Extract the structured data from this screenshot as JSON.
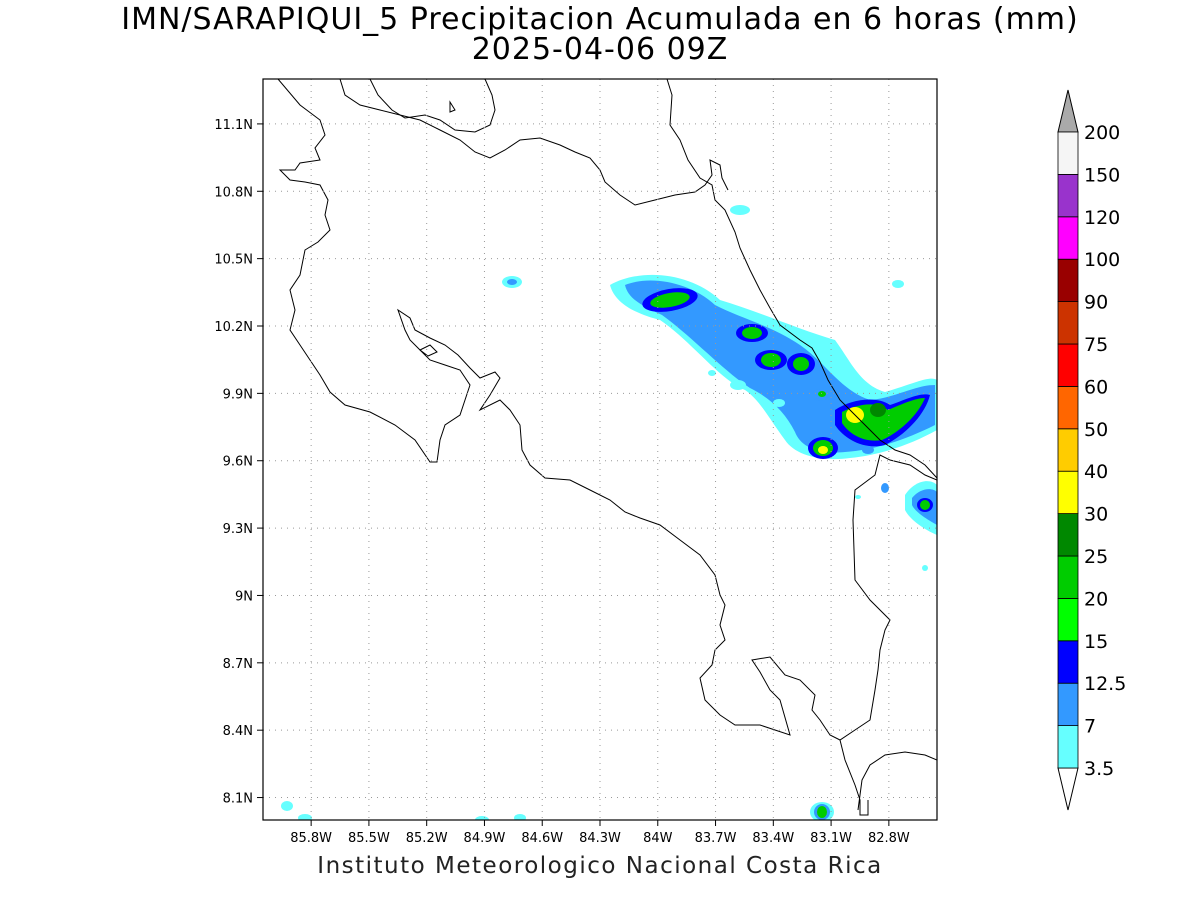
{
  "header": {
    "title_line1": "IMN/SARAPIQUI_5 Precipitacion Acumulada en 6 horas (mm)",
    "title_line2": "2025-04-06 09Z"
  },
  "footer": {
    "credit": "Instituto Meteorologico Nacional Costa Rica"
  },
  "map": {
    "lon_range": [
      -86.05,
      -82.55
    ],
    "lat_range": [
      8.0,
      11.3
    ],
    "grid": "dotted",
    "lat_ticks": [
      "11.1N",
      "10.8N",
      "10.5N",
      "10.2N",
      "9.9N",
      "9.6N",
      "9.3N",
      "9N",
      "8.7N",
      "8.4N",
      "8.1N"
    ],
    "lat_tick_values": [
      11.1,
      10.8,
      10.5,
      10.2,
      9.9,
      9.6,
      9.3,
      9.0,
      8.7,
      8.4,
      8.1
    ],
    "lon_ticks": [
      "85.8W",
      "85.5W",
      "85.2W",
      "84.9W",
      "84.6W",
      "84.3W",
      "84W",
      "83.7W",
      "83.4W",
      "83.1W",
      "82.8W"
    ],
    "lon_tick_values": [
      -85.8,
      -85.5,
      -85.2,
      -84.9,
      -84.6,
      -84.3,
      -84.0,
      -83.7,
      -83.4,
      -83.1,
      -82.8
    ]
  },
  "colorbar": {
    "levels": [
      "3.5",
      "7",
      "12.5",
      "15",
      "20",
      "25",
      "30",
      "40",
      "50",
      "60",
      "75",
      "90",
      "100",
      "120",
      "150",
      "200"
    ],
    "colors": [
      "#66ffff",
      "#3399ff",
      "#0000ff",
      "#00ff00",
      "#00cc00",
      "#008800",
      "#ffff00",
      "#ffcc00",
      "#ff6600",
      "#ff0000",
      "#cc3300",
      "#990000",
      "#ff00ff",
      "#9933cc",
      "#f5f5f5"
    ],
    "under_color": "#ffffff",
    "over_color": "#aaaaaa"
  },
  "precip_cells": [
    {
      "lon": -83.96,
      "lat": 10.32,
      "value": 25
    },
    {
      "lon": -83.55,
      "lat": 10.17,
      "value": 20
    },
    {
      "lon": -83.38,
      "lat": 10.05,
      "value": 20
    },
    {
      "lon": -83.23,
      "lat": 10.03,
      "value": 20
    },
    {
      "lon": -82.9,
      "lat": 9.82,
      "value": 40
    },
    {
      "lon": -82.73,
      "lat": 9.83,
      "value": 20
    },
    {
      "lon": -82.63,
      "lat": 9.8,
      "value": 25
    },
    {
      "lon": -83.08,
      "lat": 9.65,
      "value": 40
    },
    {
      "lon": -82.58,
      "lat": 9.4,
      "value": 20
    },
    {
      "lon": -83.05,
      "lat": 8.05,
      "value": 20
    },
    {
      "lon": -84.62,
      "lat": 10.37,
      "value": 7
    }
  ]
}
